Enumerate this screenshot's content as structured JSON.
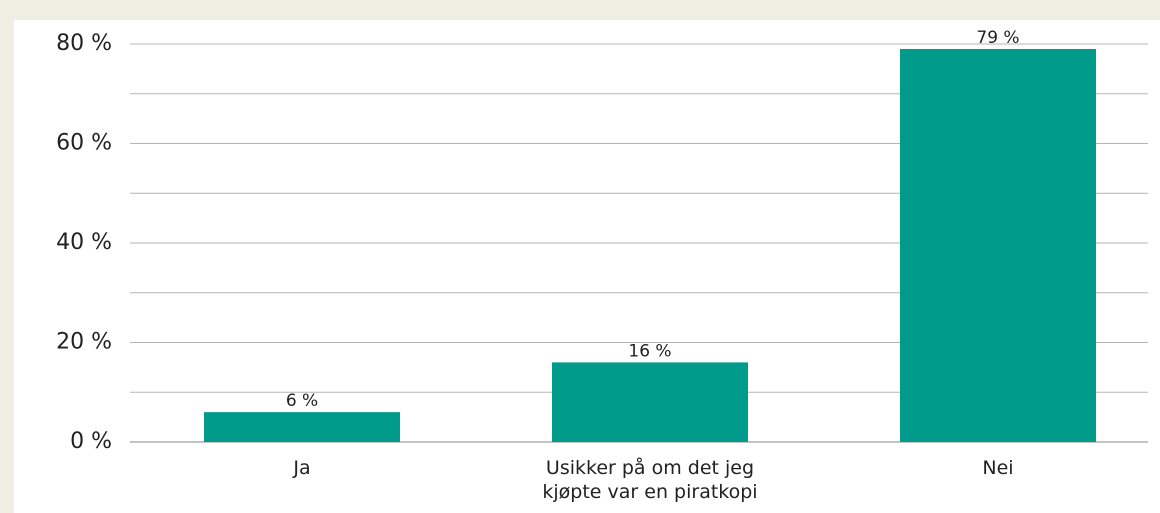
{
  "chart_data": {
    "type": "bar",
    "categories": [
      "Ja",
      "Usikker på om det jeg kjøpte var en piratkopi",
      "Nei"
    ],
    "values": [
      6,
      16,
      79
    ],
    "value_labels": [
      "6 %",
      "16 %",
      "79 %"
    ],
    "color": "#009b8a",
    "ylim": [
      0,
      80
    ],
    "yticks": [
      {
        "value": 0,
        "label": "0 %"
      },
      {
        "value": 20,
        "label": "20 %"
      },
      {
        "value": 40,
        "label": "40 %"
      },
      {
        "value": 60,
        "label": "60 %"
      },
      {
        "value": 80,
        "label": "80 %"
      }
    ],
    "minor_yticks": [
      10,
      30,
      50,
      70
    ],
    "grid": true
  }
}
